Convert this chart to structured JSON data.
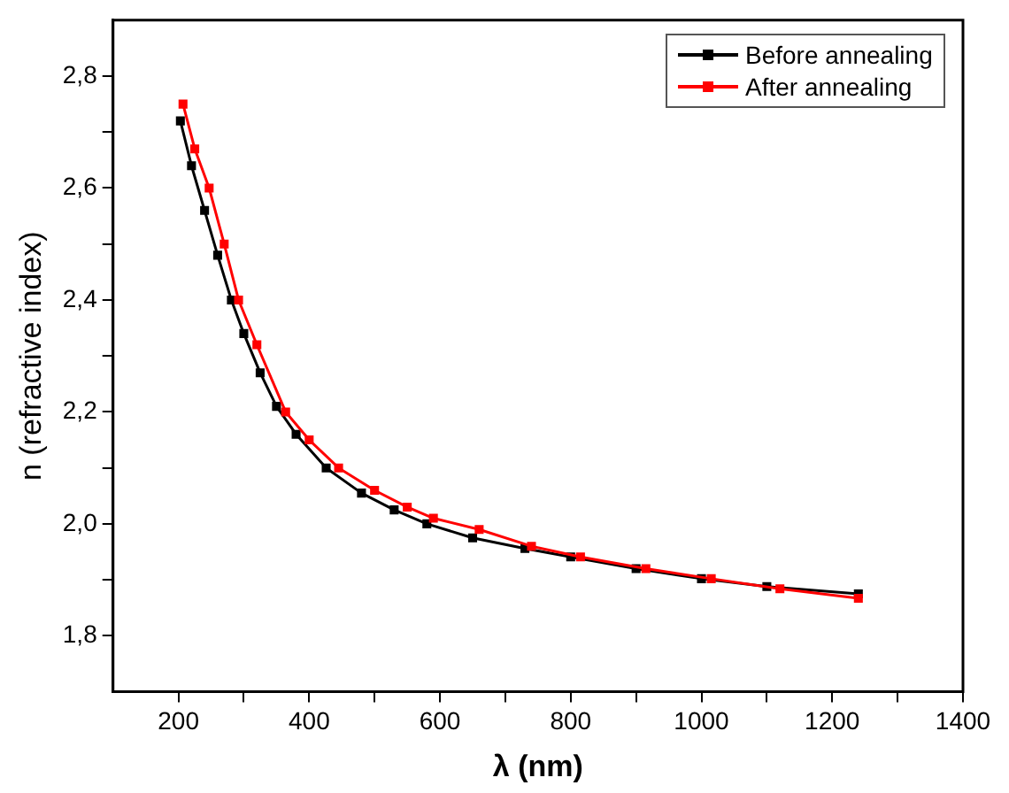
{
  "chart_data": {
    "type": "line",
    "xlabel": "λ (nm)",
    "ylabel": "n (refractive index)",
    "xlim": [
      100,
      1400
    ],
    "xticks": [
      {
        "value": 200,
        "label": "200"
      },
      {
        "value": 300,
        "label": null
      },
      {
        "value": 400,
        "label": "400"
      },
      {
        "value": 500,
        "label": null
      },
      {
        "value": 600,
        "label": "600"
      },
      {
        "value": 700,
        "label": null
      },
      {
        "value": 800,
        "label": "800"
      },
      {
        "value": 900,
        "label": null
      },
      {
        "value": 1000,
        "label": "1000"
      },
      {
        "value": 1100,
        "label": null
      },
      {
        "value": 1200,
        "label": "1200"
      },
      {
        "value": 1300,
        "label": null
      },
      {
        "value": 1400,
        "label": "1400"
      }
    ],
    "ylim": [
      1.7,
      2.9
    ],
    "yticks": [
      {
        "value": 1.8,
        "label": "1,8"
      },
      {
        "value": 1.9,
        "label": null
      },
      {
        "value": 2.0,
        "label": "2,0"
      },
      {
        "value": 2.1,
        "label": null
      },
      {
        "value": 2.2,
        "label": "2,2"
      },
      {
        "value": 2.3,
        "label": null
      },
      {
        "value": 2.4,
        "label": "2,4"
      },
      {
        "value": 2.5,
        "label": null
      },
      {
        "value": 2.6,
        "label": "2,6"
      },
      {
        "value": 2.7,
        "label": null
      },
      {
        "value": 2.8,
        "label": "2,8"
      }
    ],
    "grid": false,
    "legend": "top right",
    "marker": "square",
    "line_style": "solid",
    "series": [
      {
        "name": "Before annealing",
        "color": "#000000",
        "x": [
          203,
          220,
          240,
          260,
          281,
          300,
          325,
          350,
          380,
          426,
          480,
          530,
          580,
          650,
          730,
          800,
          900,
          1000,
          1100,
          1240
        ],
        "values": [
          2.72,
          2.64,
          2.56,
          2.48,
          2.4,
          2.34,
          2.27,
          2.21,
          2.16,
          2.1,
          2.055,
          2.025,
          2.0,
          1.975,
          1.956,
          1.941,
          1.92,
          1.902,
          1.888,
          1.875
        ]
      },
      {
        "name": "After annealing",
        "color": "#ff0000",
        "x": [
          207,
          225,
          247,
          270,
          292,
          320,
          364,
          400,
          445,
          500,
          550,
          590,
          660,
          740,
          815,
          915,
          1015,
          1120,
          1240
        ],
        "values": [
          2.75,
          2.67,
          2.6,
          2.5,
          2.4,
          2.32,
          2.2,
          2.15,
          2.1,
          2.06,
          2.03,
          2.01,
          1.99,
          1.96,
          1.941,
          1.92,
          1.902,
          1.884,
          1.867
        ]
      }
    ]
  }
}
